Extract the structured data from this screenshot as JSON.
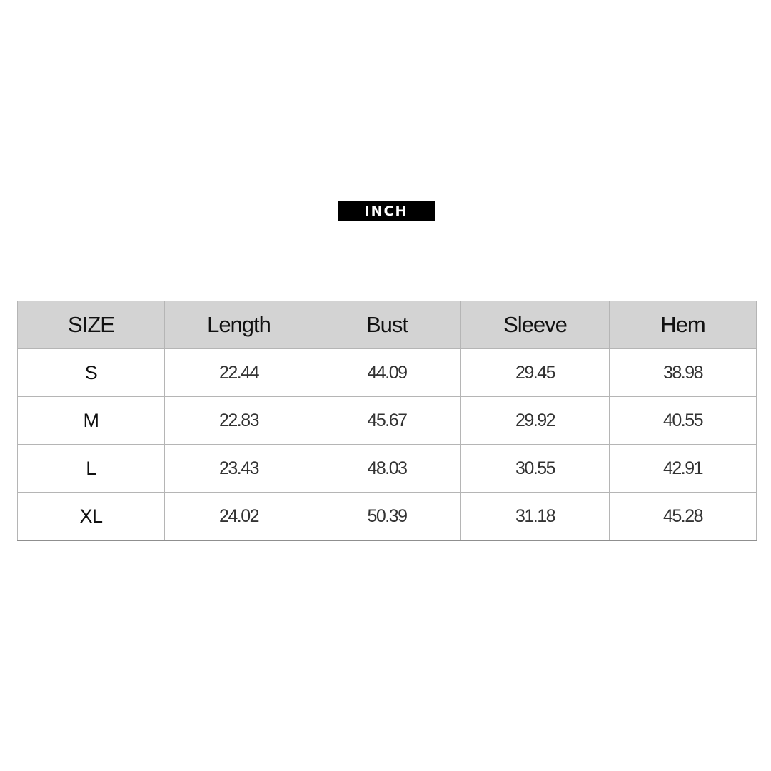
{
  "unit_label": "INCH",
  "table": {
    "headers": [
      "SIZE",
      "Length",
      "Bust",
      "Sleeve",
      "Hem"
    ],
    "rows": [
      [
        "S",
        "22.44",
        "44.09",
        "29.45",
        "38.98"
      ],
      [
        "M",
        "22.83",
        "45.67",
        "29.92",
        "40.55"
      ],
      [
        "L",
        "23.43",
        "48.03",
        "30.55",
        "42.91"
      ],
      [
        "XL",
        "24.02",
        "50.39",
        "31.18",
        "45.28"
      ]
    ]
  },
  "colors": {
    "header_bg": "#d3d3d3",
    "badge_bg": "#000000",
    "badge_text": "#ffffff",
    "grid": "#b5b5b5"
  }
}
